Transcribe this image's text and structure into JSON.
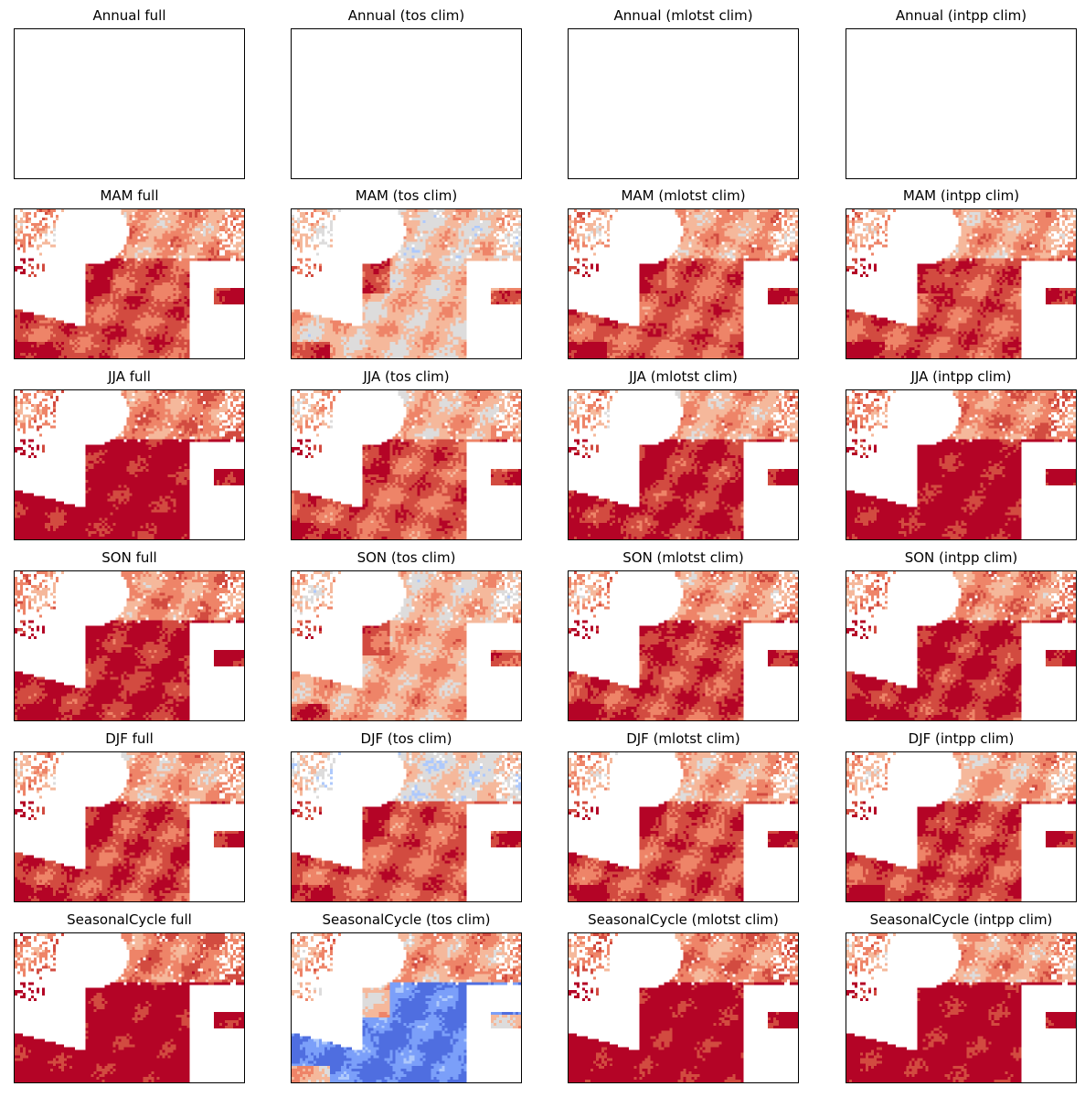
{
  "figure": {
    "row_labels": [
      "Annual",
      "MAM",
      "JJA",
      "SON",
      "DJF",
      "SeasonalCycle"
    ],
    "column_labels": [
      "full",
      "(tos clim)",
      "(mlotst clim)",
      "(intpp clim)"
    ],
    "colors": {
      "deep_red": "#b40426",
      "red": "#d24b40",
      "salmon": "#ee8468",
      "light_salmon": "#f5b89b",
      "neutral": "#dddcdc",
      "light_blue": "#aec9fc",
      "blue": "#7b9ff9",
      "deep_blue": "#4f6ee0",
      "land": "#ffffff"
    }
  },
  "chart_data": {
    "type": "heatmap",
    "colormap": "coolwarm",
    "axes_ticks": false,
    "colorbar": false,
    "panels": [
      {
        "title": "Annual full",
        "row": "Annual",
        "column": "full",
        "has_data": false
      },
      {
        "title": "Annual (tos clim)",
        "row": "Annual",
        "column": "(tos clim)",
        "has_data": false
      },
      {
        "title": "Annual (mlotst clim)",
        "row": "Annual",
        "column": "(mlotst clim)",
        "has_data": false
      },
      {
        "title": "Annual (intpp clim)",
        "row": "Annual",
        "column": "(intpp clim)",
        "has_data": false
      },
      {
        "title": "MAM full",
        "row": "MAM",
        "column": "full",
        "has_data": true,
        "south_level": 0.8,
        "north_level": 0.62,
        "shelf_level": 0.92
      },
      {
        "title": "MAM (tos clim)",
        "row": "MAM",
        "column": "(tos clim)",
        "has_data": true,
        "south_level": 0.55,
        "north_level": 0.52,
        "shelf_level": 0.8
      },
      {
        "title": "MAM (mlotst clim)",
        "row": "MAM",
        "column": "(mlotst clim)",
        "has_data": true,
        "south_level": 0.78,
        "north_level": 0.62,
        "shelf_level": 0.92
      },
      {
        "title": "MAM (intpp clim)",
        "row": "MAM",
        "column": "(intpp clim)",
        "has_data": true,
        "south_level": 0.8,
        "north_level": 0.62,
        "shelf_level": 0.92
      },
      {
        "title": "JJA full",
        "row": "JJA",
        "column": "full",
        "has_data": true,
        "south_level": 0.95,
        "north_level": 0.68,
        "shelf_level": 0.96
      },
      {
        "title": "JJA (tos clim)",
        "row": "JJA",
        "column": "(tos clim)",
        "has_data": true,
        "south_level": 0.78,
        "north_level": 0.58,
        "shelf_level": 0.9
      },
      {
        "title": "JJA (mlotst clim)",
        "row": "JJA",
        "column": "(mlotst clim)",
        "has_data": true,
        "south_level": 0.88,
        "north_level": 0.6,
        "shelf_level": 0.94
      },
      {
        "title": "JJA (intpp clim)",
        "row": "JJA",
        "column": "(intpp clim)",
        "has_data": true,
        "south_level": 0.95,
        "north_level": 0.68,
        "shelf_level": 0.96
      },
      {
        "title": "SON full",
        "row": "SON",
        "column": "full",
        "has_data": true,
        "south_level": 0.9,
        "north_level": 0.66,
        "shelf_level": 0.95
      },
      {
        "title": "SON (tos clim)",
        "row": "SON",
        "column": "(tos clim)",
        "has_data": true,
        "south_level": 0.6,
        "north_level": 0.55,
        "shelf_level": 0.82
      },
      {
        "title": "SON (mlotst clim)",
        "row": "SON",
        "column": "(mlotst clim)",
        "has_data": true,
        "south_level": 0.82,
        "north_level": 0.63,
        "shelf_level": 0.93
      },
      {
        "title": "SON (intpp clim)",
        "row": "SON",
        "column": "(intpp clim)",
        "has_data": true,
        "south_level": 0.88,
        "north_level": 0.66,
        "shelf_level": 0.95
      },
      {
        "title": "DJF full",
        "row": "DJF",
        "column": "full",
        "has_data": true,
        "south_level": 0.82,
        "north_level": 0.6,
        "shelf_level": 0.93
      },
      {
        "title": "DJF (tos clim)",
        "row": "DJF",
        "column": "(tos clim)",
        "has_data": true,
        "south_level": 0.78,
        "north_level": 0.48,
        "shelf_level": 0.9
      },
      {
        "title": "DJF (mlotst clim)",
        "row": "DJF",
        "column": "(mlotst clim)",
        "has_data": true,
        "south_level": 0.8,
        "north_level": 0.6,
        "shelf_level": 0.92
      },
      {
        "title": "DJF (intpp clim)",
        "row": "DJF",
        "column": "(intpp clim)",
        "has_data": true,
        "south_level": 0.82,
        "north_level": 0.6,
        "shelf_level": 0.93
      },
      {
        "title": "SeasonalCycle full",
        "row": "SeasonalCycle",
        "column": "full",
        "has_data": true,
        "south_level": 0.97,
        "north_level": 0.7,
        "shelf_level": 0.97
      },
      {
        "title": "SeasonalCycle (tos clim)",
        "row": "SeasonalCycle",
        "column": "(tos clim)",
        "has_data": true,
        "south_level": 0.12,
        "north_level": 0.62,
        "shelf_level": 0.55
      },
      {
        "title": "SeasonalCycle (mlotst clim)",
        "row": "SeasonalCycle",
        "column": "(mlotst clim)",
        "has_data": true,
        "south_level": 0.96,
        "north_level": 0.68,
        "shelf_level": 0.97
      },
      {
        "title": "SeasonalCycle (intpp clim)",
        "row": "SeasonalCycle",
        "column": "(intpp clim)",
        "has_data": true,
        "south_level": 0.96,
        "north_level": 0.62,
        "shelf_level": 0.96
      }
    ]
  }
}
